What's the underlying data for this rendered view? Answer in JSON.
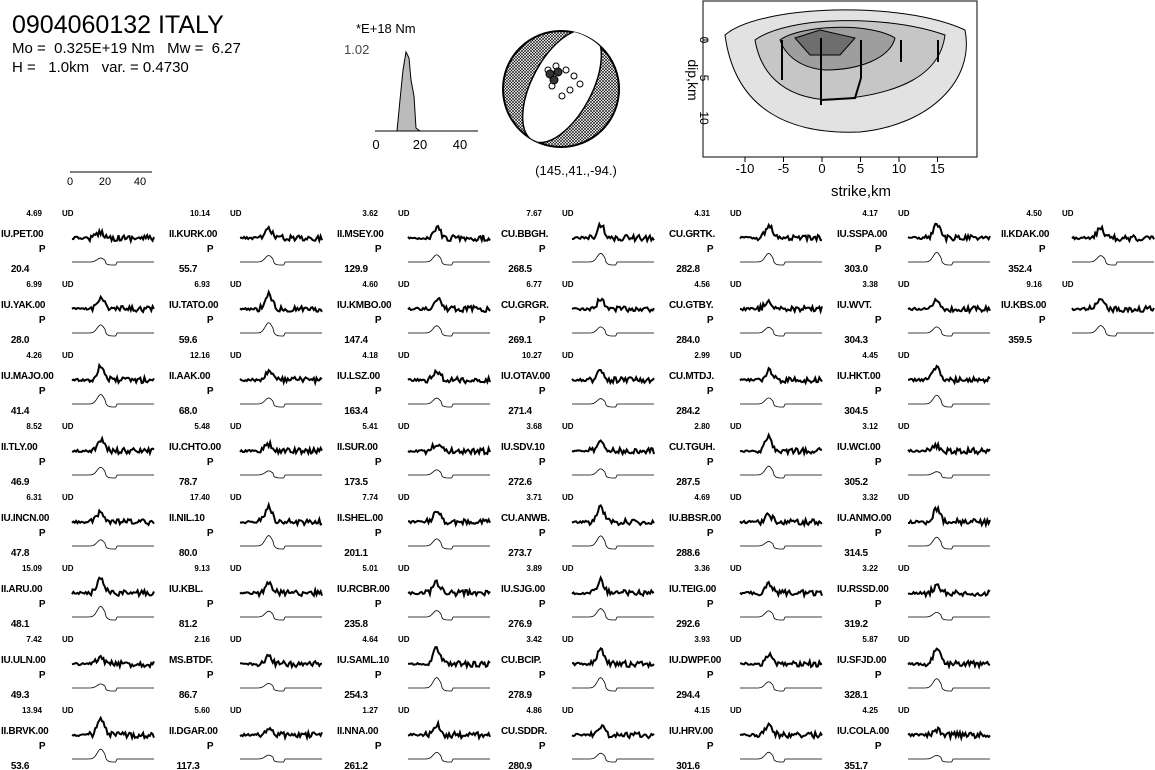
{
  "header": {
    "title": "0904060132 ITALY",
    "moment_line": "Mo =  0.325E+19 Nm   Mw =  6.27",
    "depth_line": "H =   1.0km   var. = 0.4730"
  },
  "source_time_function": {
    "unit": "*E+18 Nm",
    "peak": "1.02",
    "xticks": [
      "0",
      "20",
      "40"
    ]
  },
  "mechanism": {
    "label": "(145.,41.,-94.)"
  },
  "slip_map": {
    "ylabel": "dip,km",
    "yticks": [
      "0",
      "5",
      "10"
    ],
    "xticks": [
      "-10",
      "-5",
      "0",
      "5",
      "10",
      "15"
    ],
    "xlabel": "strike,km"
  },
  "time_scale": {
    "ticks": [
      "0",
      "20",
      "40"
    ]
  },
  "stations": [
    [
      [
        "4.69",
        "UD",
        "IU.PET.00",
        "P",
        "20.4"
      ],
      [
        "6.99",
        "UD",
        "IU.YAK.00",
        "P",
        "28.0"
      ],
      [
        "4.26",
        "UD",
        "IU.MAJO.00",
        "P",
        "41.4"
      ],
      [
        "8.52",
        "UD",
        "II.TLY.00",
        "P",
        "46.9"
      ],
      [
        "6.31",
        "UD",
        "IU.INCN.00",
        "P",
        "47.8"
      ],
      [
        "15.09",
        "UD",
        "II.ARU.00",
        "P",
        "48.1"
      ],
      [
        "7.42",
        "UD",
        "IU.ULN.00",
        "P",
        "49.3"
      ],
      [
        "13.94",
        "UD",
        "II.BRVK.00",
        "P",
        "53.6"
      ]
    ],
    [
      [
        "10.14",
        "UD",
        "II.KURK.00",
        "P",
        "55.7"
      ],
      [
        "6.93",
        "UD",
        "IU.TATO.00",
        "P",
        "59.6"
      ],
      [
        "12.16",
        "UD",
        "II.AAK.00",
        "P",
        "68.0"
      ],
      [
        "5.48",
        "UD",
        "IU.CHTO.00",
        "P",
        "78.7"
      ],
      [
        "17.40",
        "UD",
        "II.NIL.10",
        "P",
        "80.0"
      ],
      [
        "9.13",
        "UD",
        "IU.KBL.",
        "P",
        "81.2"
      ],
      [
        "2.16",
        "UD",
        "MS.BTDF.",
        "P",
        "86.7"
      ],
      [
        "5.60",
        "UD",
        "II.DGAR.00",
        "P",
        "117.3"
      ]
    ],
    [
      [
        "3.62",
        "UD",
        "II.MSEY.00",
        "P",
        "129.9"
      ],
      [
        "4.60",
        "UD",
        "IU.KMBO.00",
        "P",
        "147.4"
      ],
      [
        "4.18",
        "UD",
        "IU.LSZ.00",
        "P",
        "163.4"
      ],
      [
        "5.41",
        "UD",
        "II.SUR.00",
        "P",
        "173.5"
      ],
      [
        "7.74",
        "UD",
        "II.SHEL.00",
        "P",
        "201.1"
      ],
      [
        "5.01",
        "UD",
        "IU.RCBR.00",
        "P",
        "235.8"
      ],
      [
        "4.64",
        "UD",
        "IU.SAML.10",
        "P",
        "254.3"
      ],
      [
        "1.27",
        "UD",
        "II.NNA.00",
        "P",
        "261.2"
      ]
    ],
    [
      [
        "7.67",
        "UD",
        "CU.BBGH.",
        "P",
        "268.5"
      ],
      [
        "6.77",
        "UD",
        "CU.GRGR.",
        "P",
        "269.1"
      ],
      [
        "10.27",
        "UD",
        "IU.OTAV.00",
        "P",
        "271.4"
      ],
      [
        "3.68",
        "UD",
        "IU.SDV.10",
        "P",
        "272.6"
      ],
      [
        "3.71",
        "UD",
        "CU.ANWB.",
        "P",
        "273.7"
      ],
      [
        "3.89",
        "UD",
        "IU.SJG.00",
        "P",
        "276.9"
      ],
      [
        "3.42",
        "UD",
        "CU.BCIP.",
        "P",
        "278.9"
      ],
      [
        "4.86",
        "UD",
        "CU.SDDR.",
        "P",
        "280.9"
      ]
    ],
    [
      [
        "4.31",
        "UD",
        "CU.GRTK.",
        "P",
        "282.8"
      ],
      [
        "4.56",
        "UD",
        "CU.GTBY.",
        "P",
        "284.0"
      ],
      [
        "2.99",
        "UD",
        "CU.MTDJ.",
        "P",
        "284.2"
      ],
      [
        "2.80",
        "UD",
        "CU.TGUH.",
        "P",
        "287.5"
      ],
      [
        "4.69",
        "UD",
        "IU.BBSR.00",
        "P",
        "288.6"
      ],
      [
        "3.36",
        "UD",
        "IU.TEIG.00",
        "P",
        "292.6"
      ],
      [
        "3.93",
        "UD",
        "IU.DWPF.00",
        "P",
        "294.4"
      ],
      [
        "4.15",
        "UD",
        "IU.HRV.00",
        "P",
        "301.6"
      ]
    ],
    [
      [
        "4.17",
        "UD",
        "IU.SSPA.00",
        "P",
        "303.0"
      ],
      [
        "3.38",
        "UD",
        "IU.WVT.",
        "P",
        "304.3"
      ],
      [
        "4.45",
        "UD",
        "IU.HKT.00",
        "P",
        "304.5"
      ],
      [
        "3.12",
        "UD",
        "IU.WCI.00",
        "P",
        "305.2"
      ],
      [
        "3.32",
        "UD",
        "IU.ANMO.00",
        "P",
        "314.5"
      ],
      [
        "3.22",
        "UD",
        "IU.RSSD.00",
        "P",
        "319.2"
      ],
      [
        "5.87",
        "UD",
        "IU.SFJD.00",
        "P",
        "328.1"
      ],
      [
        "4.25",
        "UD",
        "IU.COLA.00",
        "P",
        "351.7"
      ]
    ],
    [
      [
        "4.50",
        "UD",
        "II.KDAK.00",
        "P",
        "352.4"
      ],
      [
        "9.16",
        "UD",
        "IU.KBS.00",
        "P",
        "359.5"
      ]
    ]
  ]
}
